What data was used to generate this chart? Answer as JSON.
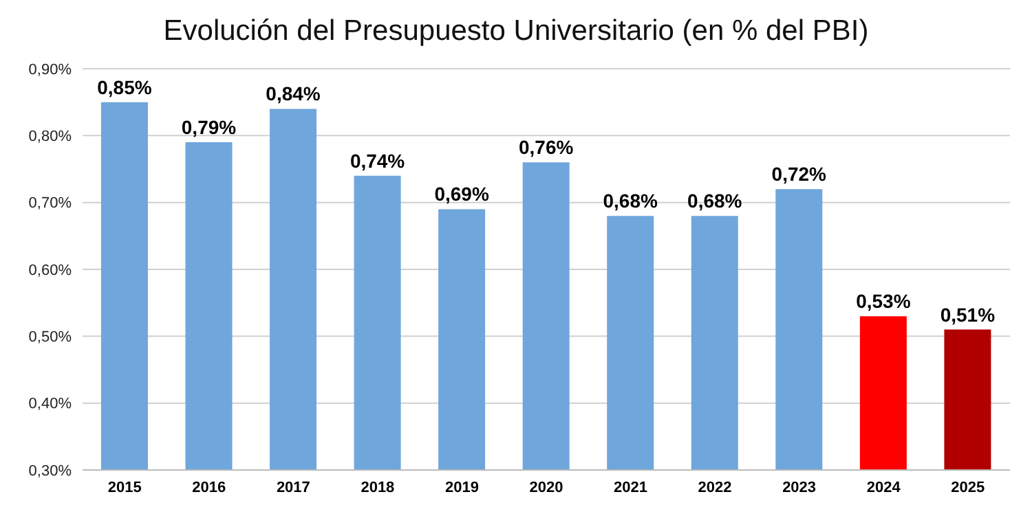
{
  "chart_data": {
    "type": "bar",
    "title": "Evolución del Presupuesto Universitario (en % del PBI)",
    "categories": [
      "2015",
      "2016",
      "2017",
      "2018",
      "2019",
      "2020",
      "2021",
      "2022",
      "2023",
      "2024",
      "2025"
    ],
    "values": [
      0.85,
      0.79,
      0.84,
      0.74,
      0.69,
      0.76,
      0.68,
      0.68,
      0.72,
      0.53,
      0.51
    ],
    "colors": [
      "#6fa6dc",
      "#6fa6dc",
      "#6fa6dc",
      "#6fa6dc",
      "#6fa6dc",
      "#6fa6dc",
      "#6fa6dc",
      "#6fa6dc",
      "#6fa6dc",
      "#ff0000",
      "#b00000"
    ],
    "value_labels": [
      "0,85%",
      "0,79%",
      "0,84%",
      "0,74%",
      "0,69%",
      "0,76%",
      "0,68%",
      "0,68%",
      "0,72%",
      "0,53%",
      "0,51%"
    ],
    "ylim": [
      0.3,
      0.9
    ],
    "yticks": [
      {
        "value": 0.3,
        "label": "0,30%"
      },
      {
        "value": 0.4,
        "label": "0,40%"
      },
      {
        "value": 0.5,
        "label": "0,50%"
      },
      {
        "value": 0.6,
        "label": "0,60%"
      },
      {
        "value": 0.7,
        "label": "0,70%"
      },
      {
        "value": 0.8,
        "label": "0,80%"
      },
      {
        "value": 0.9,
        "label": "0,90%"
      }
    ],
    "grid": "y"
  }
}
